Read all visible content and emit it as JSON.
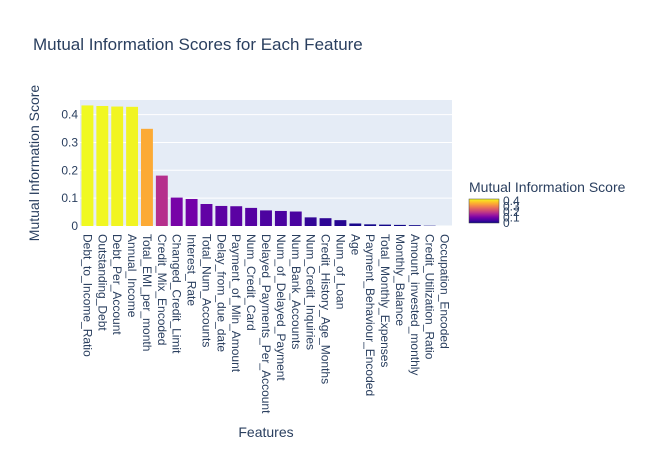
{
  "chart_data": {
    "type": "bar",
    "title": "Mutual Information Scores for Each Feature",
    "xlabel": "Features",
    "ylabel": "Mutual Information Score",
    "ylim": [
      0,
      0.4525
    ],
    "yticks": [
      0,
      0.1,
      0.2,
      0.3,
      0.4
    ],
    "ytick_labels": [
      "0",
      "0.1",
      "0.2",
      "0.3",
      "0.4"
    ],
    "grid": true,
    "categories": [
      "Debt_to_Income_Ratio",
      "Outstanding_Debt",
      "Debt_Per_Account",
      "Annual_Income",
      "Total_EMI_per_month",
      "Credit_Mix_Encoded",
      "Changed_Credit_Limit",
      "Interest_Rate",
      "Total_Num_Accounts",
      "Delay_from_due_date",
      "Payment_of_Min_Amount",
      "Num_Credit_Card",
      "Delayed_Payments_Per_Account",
      "Num_of_Delayed_Payment",
      "Num_Bank_Accounts",
      "Num_Credit_Inquiries",
      "Credit_History_Age_Months",
      "Num_of_Loan",
      "Age",
      "Payment_Behaviour_Encoded",
      "Total_Monthly_Expenses",
      "Monthly_Balance",
      "Amount_invested_monthly",
      "Credit_Utilization_Ratio",
      "Occupation_Encoded"
    ],
    "values": [
      0.433,
      0.431,
      0.429,
      0.428,
      0.349,
      0.181,
      0.102,
      0.097,
      0.079,
      0.072,
      0.071,
      0.065,
      0.056,
      0.054,
      0.052,
      0.031,
      0.028,
      0.021,
      0.009,
      0.006,
      0.005,
      0.004,
      0.003,
      0.001,
      0.0
    ],
    "colorbar": {
      "title": "Mutual Information Score",
      "tick_labels": [
        "0",
        "0.1",
        "0.2",
        "0.3",
        "0.4"
      ],
      "colorscale": [
        "#0d0887",
        "#46039f",
        "#7201a8",
        "#9c179e",
        "#bd3786",
        "#d8576b",
        "#ed7953",
        "#fb9f3a",
        "#fdca26",
        "#f0f921"
      ]
    },
    "plot_background": "#e5ecf6"
  }
}
